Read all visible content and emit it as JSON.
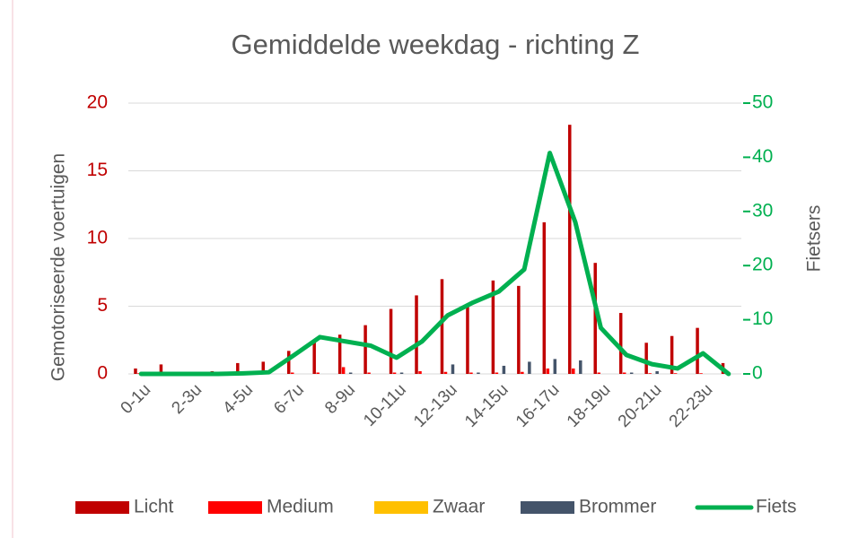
{
  "chart_data": {
    "type": "bar",
    "title": "Gemiddelde weekdag - richting Z",
    "y_label": "Gemotoriseerde voertuigen",
    "y2_label": "Fietsers",
    "categories": [
      "0-1u",
      null,
      "2-3u",
      null,
      "4-5u",
      null,
      "6-7u",
      null,
      "8-9u",
      null,
      "10-11u",
      null,
      "12-13u",
      null,
      "14-15u",
      null,
      "16-17u",
      null,
      "18-19u",
      null,
      "20-21u",
      null,
      "22-23u",
      null
    ],
    "ylim": [
      0,
      20
    ],
    "yticks": [
      0,
      5,
      10,
      15,
      20
    ],
    "y2lim": [
      0,
      50
    ],
    "y2ticks": [
      0,
      10,
      20,
      30,
      40,
      50
    ],
    "grid": true,
    "legend": "bottom",
    "series": [
      {
        "name": "Licht",
        "type": "bar",
        "color": "#c00000",
        "values": [
          0.4,
          0.7,
          0.05,
          0.2,
          0.8,
          0.9,
          1.7,
          2.4,
          2.9,
          3.6,
          4.8,
          5.8,
          7.0,
          5.2,
          6.9,
          6.5,
          11.2,
          18.4,
          8.2,
          4.5,
          2.3,
          2.8,
          3.4,
          0.8
        ]
      },
      {
        "name": "Medium",
        "type": "bar",
        "color": "#ff0000",
        "values": [
          0.05,
          0.05,
          0,
          0.05,
          0.05,
          0.05,
          0.1,
          0.1,
          0.5,
          0.1,
          0.1,
          0.2,
          0.15,
          0.1,
          0.1,
          0.15,
          0.4,
          0.4,
          0.1,
          0.1,
          0.05,
          0.05,
          0.05,
          0.05
        ]
      },
      {
        "name": "Zwaar",
        "type": "bar",
        "color": "#ffc000",
        "values": [
          0,
          0,
          0,
          0,
          0,
          0,
          0,
          0,
          0,
          0,
          0,
          0,
          0,
          0,
          0,
          0,
          0,
          0,
          0,
          0,
          0,
          0,
          0,
          0
        ]
      },
      {
        "name": "Brommer",
        "type": "bar",
        "color": "#44546a",
        "values": [
          0,
          0,
          0,
          0.1,
          0,
          0,
          0,
          0,
          0.1,
          0,
          0.1,
          0,
          0.7,
          0.1,
          0.6,
          0.9,
          1.1,
          1.0,
          0,
          0.1,
          0.2,
          0,
          0,
          0
        ]
      },
      {
        "name": "Fiets",
        "type": "line",
        "axis": "y2",
        "color": "#00b050",
        "values": [
          0,
          0,
          0,
          0,
          0.1,
          0.3,
          3.5,
          6.8,
          6.0,
          5.2,
          3.0,
          6.0,
          10.8,
          13.2,
          15.2,
          19.3,
          40.8,
          28.0,
          8.5,
          3.5,
          1.8,
          1.0,
          3.8,
          0
        ]
      }
    ]
  }
}
